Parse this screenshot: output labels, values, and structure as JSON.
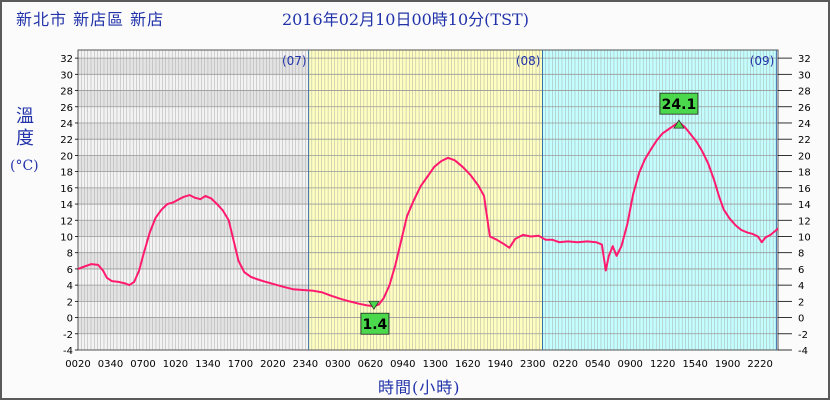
{
  "header": {
    "station": "新北市 新店區 新店",
    "datetime": "2016年02月10日00時10分(TST)"
  },
  "colors": {
    "line": "#ff1a6e",
    "grid": "#a8a8a8",
    "band_day1": "#e3e3e3",
    "band_day2": "#ffffc0",
    "band_day3": "#c4ffff",
    "day_divider": "#3a6ea8",
    "marker_fill": "#4cd84c",
    "axis_text": "#2233aa"
  },
  "chart_data": {
    "type": "line",
    "title": "",
    "ylabel_line1": "溫度",
    "ylabel_line2": "(°C)",
    "xlabel": "時間(小時)",
    "ylim": [
      -4,
      33
    ],
    "yticks": [
      -4,
      -2,
      0,
      2,
      4,
      6,
      8,
      10,
      12,
      14,
      16,
      18,
      20,
      22,
      24,
      26,
      28,
      30,
      32
    ],
    "x_range_hours": [
      0.333,
      72.167
    ],
    "xtick_labels": [
      "0020",
      "0340",
      "0700",
      "1020",
      "1340",
      "1700",
      "2020",
      "2340",
      "0300",
      "0620",
      "0940",
      "1300",
      "1620",
      "1940",
      "2300",
      "0220",
      "0540",
      "0900",
      "1220",
      "1540",
      "1900",
      "2220"
    ],
    "xtick_hours": [
      0.333,
      3.667,
      7.0,
      10.333,
      13.667,
      17.0,
      20.333,
      23.667,
      27.0,
      30.333,
      33.667,
      37.0,
      40.333,
      43.667,
      47.0,
      50.333,
      53.667,
      57.0,
      60.333,
      63.667,
      67.0,
      70.333
    ],
    "day_labels": [
      {
        "label": "(07)",
        "hour": 24
      },
      {
        "label": "(08)",
        "hour": 48
      },
      {
        "label": "(09)",
        "hour": 72
      }
    ],
    "grid": true,
    "series": [
      {
        "points": [
          [
            0.33,
            6.0
          ],
          [
            1.0,
            6.3
          ],
          [
            1.7,
            6.6
          ],
          [
            2.4,
            6.5
          ],
          [
            2.9,
            5.8
          ],
          [
            3.3,
            4.9
          ],
          [
            3.8,
            4.5
          ],
          [
            4.5,
            4.4
          ],
          [
            5.2,
            4.2
          ],
          [
            5.6,
            4.0
          ],
          [
            6.1,
            4.4
          ],
          [
            6.6,
            5.8
          ],
          [
            7.1,
            8.0
          ],
          [
            7.7,
            10.5
          ],
          [
            8.3,
            12.3
          ],
          [
            8.9,
            13.3
          ],
          [
            9.5,
            14.0
          ],
          [
            10.1,
            14.2
          ],
          [
            10.7,
            14.6
          ],
          [
            11.2,
            14.9
          ],
          [
            11.8,
            15.1
          ],
          [
            12.3,
            14.8
          ],
          [
            12.9,
            14.6
          ],
          [
            13.4,
            15.0
          ],
          [
            14.0,
            14.7
          ],
          [
            14.6,
            14.0
          ],
          [
            15.2,
            13.2
          ],
          [
            15.8,
            12.0
          ],
          [
            16.3,
            9.5
          ],
          [
            16.8,
            7.0
          ],
          [
            17.4,
            5.6
          ],
          [
            18.1,
            5.0
          ],
          [
            18.8,
            4.7
          ],
          [
            19.6,
            4.4
          ],
          [
            20.5,
            4.1
          ],
          [
            21.4,
            3.8
          ],
          [
            22.4,
            3.5
          ],
          [
            23.4,
            3.4
          ],
          [
            24.5,
            3.3
          ],
          [
            25.4,
            3.1
          ],
          [
            26.3,
            2.7
          ],
          [
            27.3,
            2.3
          ],
          [
            28.2,
            2.0
          ],
          [
            29.2,
            1.7
          ],
          [
            30.0,
            1.5
          ],
          [
            30.7,
            1.4
          ],
          [
            31.2,
            1.6
          ],
          [
            31.7,
            2.4
          ],
          [
            32.3,
            4.0
          ],
          [
            32.9,
            6.5
          ],
          [
            33.5,
            9.5
          ],
          [
            34.1,
            12.5
          ],
          [
            34.8,
            14.5
          ],
          [
            35.5,
            16.2
          ],
          [
            36.2,
            17.4
          ],
          [
            36.9,
            18.6
          ],
          [
            37.6,
            19.3
          ],
          [
            38.3,
            19.7
          ],
          [
            39.0,
            19.4
          ],
          [
            39.8,
            18.6
          ],
          [
            40.6,
            17.6
          ],
          [
            41.4,
            16.3
          ],
          [
            42.0,
            15.0
          ],
          [
            42.6,
            10.0
          ],
          [
            43.3,
            9.6
          ],
          [
            44.0,
            9.1
          ],
          [
            44.6,
            8.6
          ],
          [
            45.2,
            9.7
          ],
          [
            46.0,
            10.2
          ],
          [
            46.8,
            10.0
          ],
          [
            47.6,
            10.1
          ],
          [
            48.3,
            9.6
          ],
          [
            49.0,
            9.6
          ],
          [
            49.7,
            9.3
          ],
          [
            50.6,
            9.4
          ],
          [
            51.6,
            9.3
          ],
          [
            52.6,
            9.4
          ],
          [
            53.5,
            9.3
          ],
          [
            54.1,
            9.0
          ],
          [
            54.5,
            5.8
          ],
          [
            54.8,
            7.6
          ],
          [
            55.2,
            8.8
          ],
          [
            55.6,
            7.6
          ],
          [
            56.1,
            8.8
          ],
          [
            56.7,
            11.5
          ],
          [
            57.3,
            15.2
          ],
          [
            57.9,
            17.8
          ],
          [
            58.5,
            19.5
          ],
          [
            59.1,
            20.7
          ],
          [
            59.7,
            21.8
          ],
          [
            60.3,
            22.7
          ],
          [
            60.9,
            23.2
          ],
          [
            61.5,
            23.7
          ],
          [
            62.0,
            24.1
          ],
          [
            62.6,
            23.5
          ],
          [
            63.2,
            22.6
          ],
          [
            63.8,
            21.7
          ],
          [
            64.4,
            20.5
          ],
          [
            65.0,
            19.0
          ],
          [
            65.6,
            17.0
          ],
          [
            66.1,
            15.0
          ],
          [
            66.6,
            13.3
          ],
          [
            67.2,
            12.2
          ],
          [
            67.8,
            11.4
          ],
          [
            68.4,
            10.8
          ],
          [
            69.0,
            10.5
          ],
          [
            69.6,
            10.3
          ],
          [
            70.1,
            10.0
          ],
          [
            70.5,
            9.3
          ],
          [
            70.9,
            9.9
          ],
          [
            71.4,
            10.2
          ],
          [
            72.0,
            10.8
          ],
          [
            72.17,
            11.0
          ]
        ]
      }
    ],
    "annotations": [
      {
        "label": "1.4",
        "x": 30.7,
        "y": 1.4,
        "kind": "min"
      },
      {
        "label": "24.1",
        "x": 62.0,
        "y": 24.1,
        "kind": "max"
      }
    ]
  }
}
